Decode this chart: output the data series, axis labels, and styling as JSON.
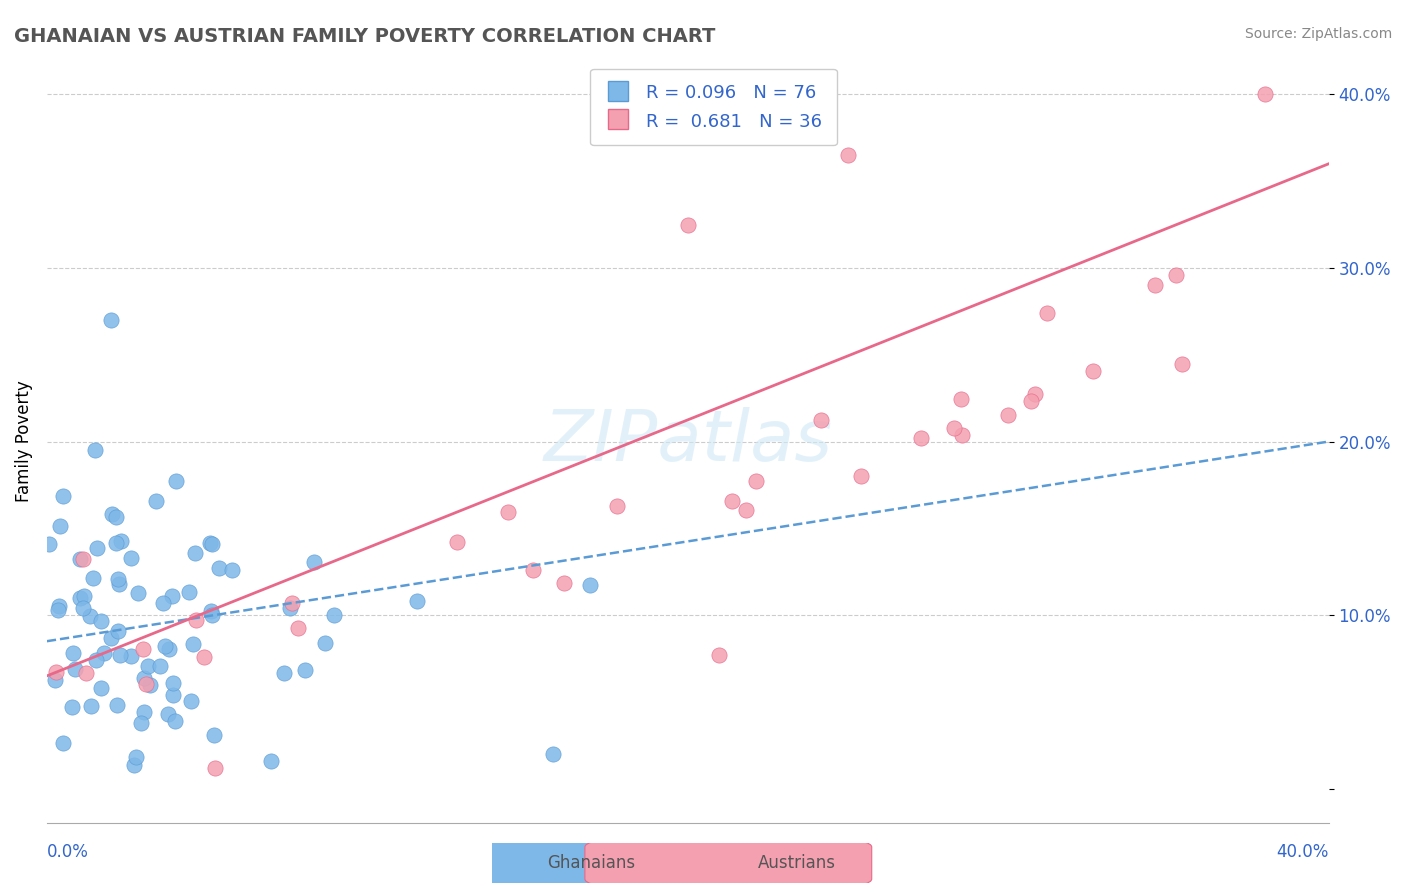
{
  "title": "GHANAIAN VS AUSTRIAN FAMILY POVERTY CORRELATION CHART",
  "source": "Source: ZipAtlas.com",
  "ylabel": "Family Poverty",
  "xlim": [
    0.0,
    0.4
  ],
  "ylim": [
    -0.02,
    0.42
  ],
  "ytick_vals": [
    0.0,
    0.1,
    0.2,
    0.3,
    0.4
  ],
  "ytick_labels": [
    "",
    "10.0%",
    "20.0%",
    "30.0%",
    "40.0%"
  ],
  "ghanaian_color": "#7eb8e8",
  "ghanaian_edge": "#5b9bd5",
  "austrian_color": "#f4a0b0",
  "austrian_edge": "#e8688a",
  "ghanaian_R": 0.096,
  "ghanaian_N": 76,
  "austrian_R": 0.681,
  "austrian_N": 36,
  "trend_blue_color": "#5b9bd5",
  "trend_pink_color": "#e8688a",
  "watermark": "ZIPatlas",
  "legend_color": "#3366cc",
  "title_color": "#555555",
  "source_color": "#888888",
  "grid_color": "#cccccc",
  "gh_trend_start_y": 0.085,
  "gh_trend_end_y": 0.2,
  "au_trend_start_y": 0.065,
  "au_trend_end_y": 0.36
}
